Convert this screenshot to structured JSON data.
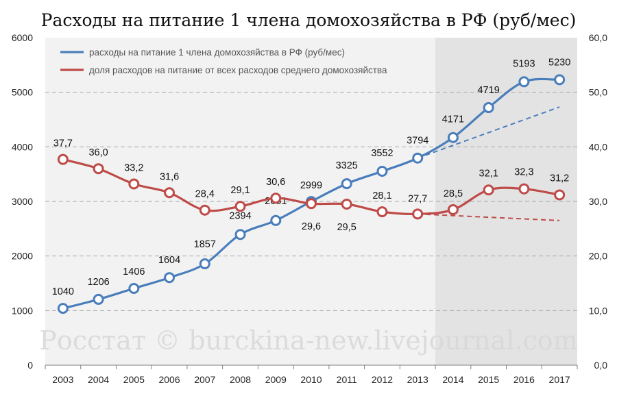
{
  "chart_data": {
    "type": "line",
    "title": "Расходы на питание 1 члена домохозяйства в РФ (руб/мес)",
    "categories": [
      "2003",
      "2004",
      "2005",
      "2006",
      "2007",
      "2008",
      "2009",
      "2010",
      "2011",
      "2012",
      "2013",
      "2014",
      "2015",
      "2016",
      "2017"
    ],
    "y_left": {
      "range": [
        0,
        6000
      ],
      "ticks": [
        "0",
        "1000",
        "2000",
        "3000",
        "4000",
        "5000",
        "6000"
      ]
    },
    "y_right": {
      "range": [
        0,
        60
      ],
      "ticks": [
        "0,0",
        "10,0",
        "20,0",
        "30,0",
        "40,0",
        "50,0",
        "60,0"
      ]
    },
    "grid": true,
    "legend_position": "top-left",
    "shaded_region": {
      "from": "2014",
      "to": "2017"
    },
    "series": [
      {
        "name": "расходы на питание 1 члена домохозяйства в РФ (руб/мес)",
        "axis": "left",
        "color": "#4a7ebb",
        "values": [
          1040,
          1206,
          1406,
          1604,
          1857,
          2394,
          2651,
          2999,
          3325,
          3552,
          3794,
          4171,
          4719,
          5193,
          5230
        ],
        "labels": [
          "1040",
          "1206",
          "1406",
          "1604",
          "1857",
          "2394",
          "2651",
          "2999",
          "3325",
          "3552",
          "3794",
          "4171",
          "4719",
          "5193",
          "5230"
        ],
        "trend": {
          "from_category": "2013",
          "from_value": 3794,
          "to_category": "2017",
          "to_value": 4730
        }
      },
      {
        "name": "доля расходов на питание от всех расходов среднего домохозяйства",
        "axis": "right",
        "color": "#be4b48",
        "values": [
          37.7,
          36.0,
          33.2,
          31.6,
          28.4,
          29.1,
          30.6,
          29.6,
          29.5,
          28.1,
          27.7,
          28.5,
          32.1,
          32.3,
          31.2
        ],
        "labels": [
          "37,7",
          "36,0",
          "33,2",
          "31,6",
          "28,4",
          "29,1",
          "30,6",
          "29,6",
          "29,5",
          "28,1",
          "27,7",
          "28,5",
          "32,1",
          "32,3",
          "31,2"
        ],
        "trend": {
          "from_category": "2013",
          "from_value": 27.7,
          "to_category": "2017",
          "to_value": 26.5
        }
      }
    ]
  },
  "watermark": "Росстат © burckina-new.livejournal.com"
}
